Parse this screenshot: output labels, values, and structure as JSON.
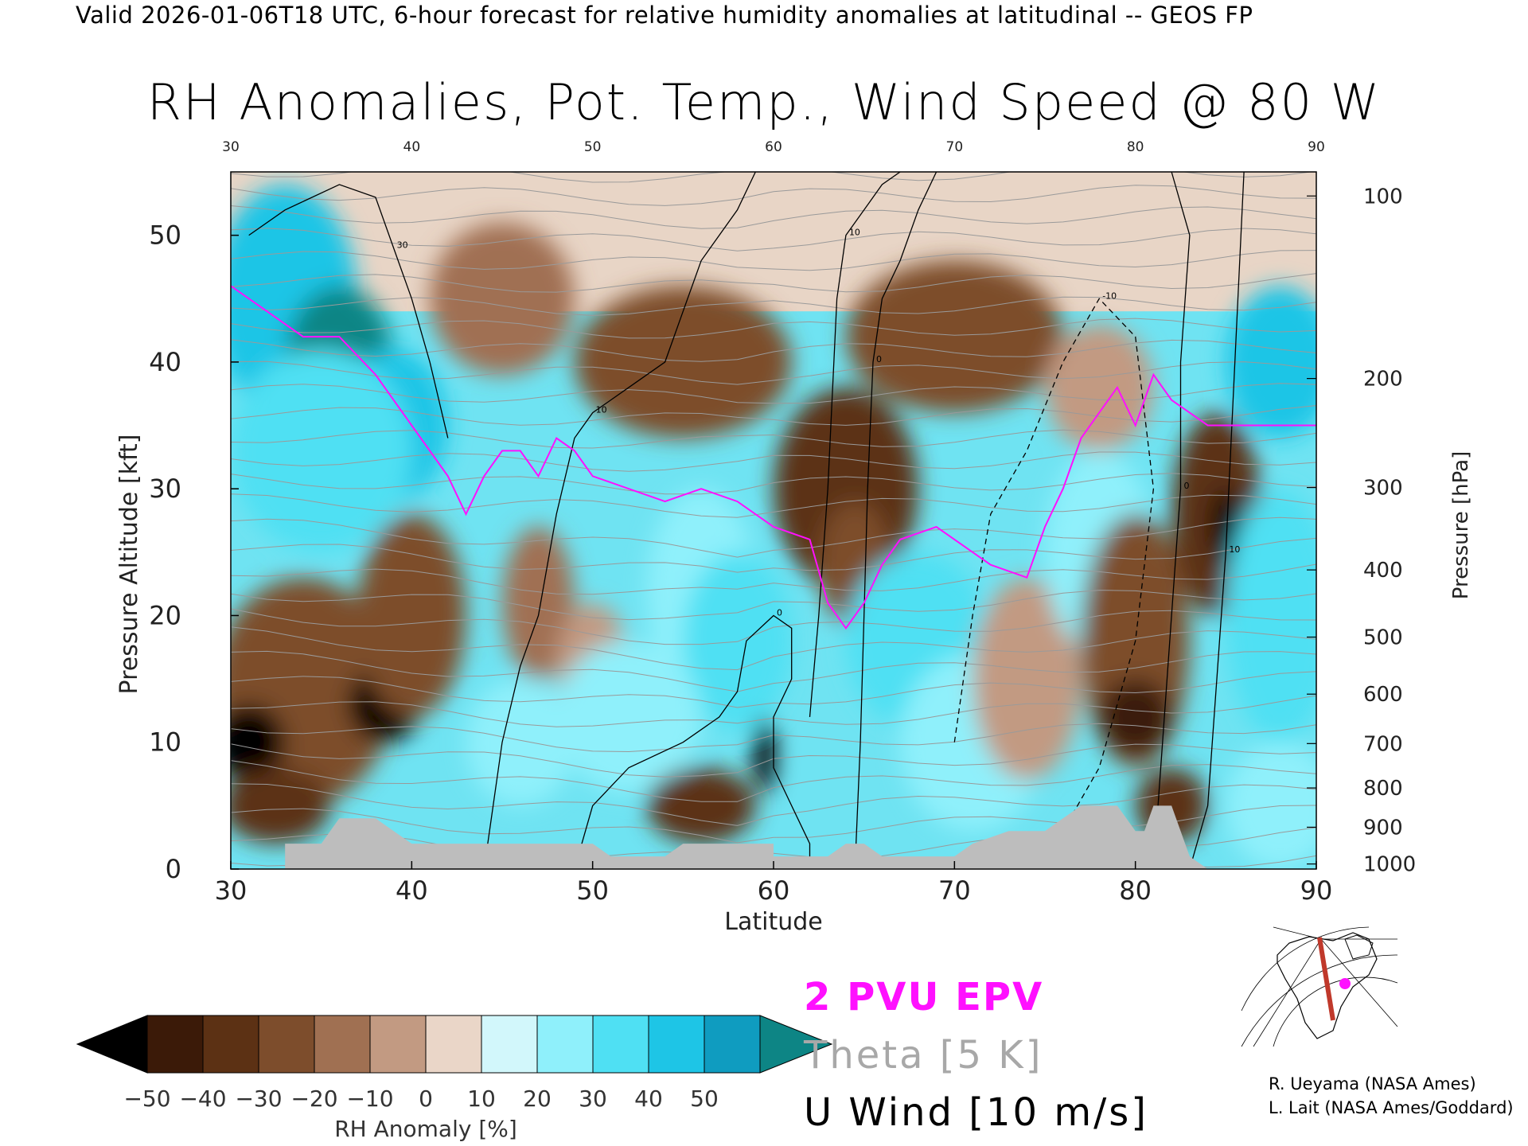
{
  "header": "Valid 2026-01-06T18 UTC, 6-hour forecast for relative humidity anomalies at latitudinal -- GEOS FP",
  "title": "RH Anomalies, Pot. Temp., Wind Speed @ 80 W",
  "legend": {
    "epv_label": "2 PVU EPV",
    "theta_label": "Theta [5 K]",
    "uwind_label": "U Wind [10 m/s]"
  },
  "colorbar": {
    "label": "RH Anomaly [%]",
    "ticks": [
      "−50",
      "−40",
      "−30",
      "−20",
      "−10",
      "0",
      "10",
      "20",
      "30",
      "40",
      "50"
    ],
    "colors": [
      "#000000",
      "#3b1a08",
      "#5c3114",
      "#7d4d2c",
      "#a07052",
      "#c29a82",
      "#ead6c8",
      "#d2f7fb",
      "#8ff0fb",
      "#4fe0f3",
      "#1ec5e6",
      "#0f9cc0",
      "#0d8585"
    ]
  },
  "credits": [
    "R. Ueyama (NASA Ames)",
    "L. Lait (NASA Ames/Goddard)"
  ],
  "chart_data": {
    "type": "heatmap",
    "title": "RH Anomalies, Pot. Temp., Wind Speed @ 80 W",
    "xlabel": "Latitude",
    "ylabel": "Pressure Altitude [kft]",
    "y2label": "Pressure [hPa]",
    "xlim": [
      30,
      90
    ],
    "ylim": [
      0,
      55
    ],
    "x_ticks": [
      30,
      40,
      50,
      60,
      70,
      80,
      90
    ],
    "y_ticks": [
      0,
      10,
      20,
      30,
      40,
      50
    ],
    "pressure_ticks": [
      {
        "hpa": "100",
        "kft": 53.1
      },
      {
        "hpa": "200",
        "kft": 38.7
      },
      {
        "hpa": "300",
        "kft": 30.1
      },
      {
        "hpa": "400",
        "kft": 23.6
      },
      {
        "hpa": "500",
        "kft": 18.3
      },
      {
        "hpa": "600",
        "kft": 13.8
      },
      {
        "hpa": "700",
        "kft": 9.9
      },
      {
        "hpa": "800",
        "kft": 6.4
      },
      {
        "hpa": "900",
        "kft": 3.3
      },
      {
        "hpa": "1000",
        "kft": 0.4
      }
    ],
    "rh_anomaly_blobs": [
      {
        "lat": 33,
        "kft": 45,
        "value": 45,
        "rx": 4,
        "ry": 9
      },
      {
        "lat": 36,
        "kft": 40,
        "value": 50,
        "rx": 3,
        "ry": 6
      },
      {
        "lat": 39,
        "kft": 35,
        "value": 40,
        "rx": 3,
        "ry": 6
      },
      {
        "lat": 35,
        "kft": 33,
        "value": 35,
        "rx": 5,
        "ry": 8
      },
      {
        "lat": 34,
        "kft": 14,
        "value": -30,
        "rx": 5,
        "ry": 9
      },
      {
        "lat": 31,
        "kft": 10,
        "value": -50,
        "rx": 2,
        "ry": 3
      },
      {
        "lat": 38.5,
        "kft": 13,
        "value": -50,
        "rx": 2,
        "ry": 3
      },
      {
        "lat": 40,
        "kft": 20,
        "value": -30,
        "rx": 3,
        "ry": 8
      },
      {
        "lat": 32.5,
        "kft": 5,
        "value": -40,
        "rx": 3,
        "ry": 3
      },
      {
        "lat": 47,
        "kft": 21,
        "value": -20,
        "rx": 2,
        "ry": 6
      },
      {
        "lat": 50,
        "kft": 16,
        "value": -10,
        "rx": 2,
        "ry": 5
      },
      {
        "lat": 56,
        "kft": 22,
        "value": 20,
        "rx": 3,
        "ry": 8
      },
      {
        "lat": 58,
        "kft": 18,
        "value": 35,
        "rx": 3,
        "ry": 7
      },
      {
        "lat": 52,
        "kft": 12,
        "value": 25,
        "rx": 4,
        "ry": 6
      },
      {
        "lat": 46,
        "kft": 10,
        "value": 20,
        "rx": 3,
        "ry": 5
      },
      {
        "lat": 56,
        "kft": 5,
        "value": -35,
        "rx": 3,
        "ry": 3
      },
      {
        "lat": 59.5,
        "kft": 9,
        "value": -50,
        "rx": 0.6,
        "ry": 3
      },
      {
        "lat": 64,
        "kft": 30,
        "value": -40,
        "rx": 4,
        "ry": 8
      },
      {
        "lat": 64.5,
        "kft": 24,
        "value": -30,
        "rx": 2,
        "ry": 5
      },
      {
        "lat": 68,
        "kft": 18,
        "value": 35,
        "rx": 4,
        "ry": 7
      },
      {
        "lat": 71,
        "kft": 10,
        "value": 20,
        "rx": 4,
        "ry": 7
      },
      {
        "lat": 74,
        "kft": 15,
        "value": -10,
        "rx": 3,
        "ry": 8
      },
      {
        "lat": 78,
        "kft": 25,
        "value": 20,
        "rx": 3,
        "ry": 8
      },
      {
        "lat": 80,
        "kft": 18,
        "value": -30,
        "rx": 3,
        "ry": 10
      },
      {
        "lat": 80,
        "kft": 12,
        "value": -45,
        "rx": 2,
        "ry": 3
      },
      {
        "lat": 84.5,
        "kft": 28,
        "value": -40,
        "rx": 2.5,
        "ry": 8
      },
      {
        "lat": 85,
        "kft": 27,
        "value": -50,
        "rx": 0.8,
        "ry": 3
      },
      {
        "lat": 82,
        "kft": 5,
        "value": -35,
        "rx": 2,
        "ry": 3
      },
      {
        "lat": 88,
        "kft": 40,
        "value": 40,
        "rx": 3,
        "ry": 6
      },
      {
        "lat": 88,
        "kft": 20,
        "value": 30,
        "rx": 3,
        "ry": 10
      },
      {
        "lat": 88,
        "kft": 5,
        "value": 25,
        "rx": 3,
        "ry": 5
      },
      {
        "lat": 45,
        "kft": 45,
        "value": -20,
        "rx": 4,
        "ry": 6
      },
      {
        "lat": 55,
        "kft": 40,
        "value": -30,
        "rx": 6,
        "ry": 6
      },
      {
        "lat": 70,
        "kft": 42,
        "value": -30,
        "rx": 6,
        "ry": 6
      },
      {
        "lat": 78,
        "kft": 38,
        "value": -10,
        "rx": 3,
        "ry": 5
      }
    ],
    "epv_2pvu_line": [
      [
        30,
        46
      ],
      [
        32,
        44
      ],
      [
        34,
        42
      ],
      [
        36,
        42
      ],
      [
        38,
        39
      ],
      [
        40,
        35
      ],
      [
        42,
        31
      ],
      [
        43,
        28
      ],
      [
        44,
        31
      ],
      [
        45,
        33
      ],
      [
        46,
        33
      ],
      [
        47,
        31
      ],
      [
        48,
        34
      ],
      [
        49,
        33
      ],
      [
        50,
        31
      ],
      [
        52,
        30
      ],
      [
        54,
        29
      ],
      [
        56,
        30
      ],
      [
        58,
        29
      ],
      [
        60,
        27
      ],
      [
        62,
        26
      ],
      [
        63,
        21
      ],
      [
        64,
        19
      ],
      [
        65,
        21
      ],
      [
        66,
        24
      ],
      [
        67,
        26
      ],
      [
        69,
        27
      ],
      [
        72,
        24
      ],
      [
        74,
        23
      ],
      [
        75,
        27
      ],
      [
        76,
        30
      ],
      [
        77,
        34
      ],
      [
        78,
        36
      ],
      [
        79,
        38
      ],
      [
        80,
        35
      ],
      [
        81,
        39
      ],
      [
        82,
        37
      ],
      [
        83,
        36
      ],
      [
        84,
        35
      ],
      [
        85,
        35
      ],
      [
        86,
        35
      ],
      [
        88,
        35
      ],
      [
        90,
        35
      ]
    ],
    "u_wind_contours": [
      {
        "label": "10",
        "points": [
          [
            62,
            12
          ],
          [
            62.5,
            20
          ],
          [
            63,
            30
          ],
          [
            63.5,
            45
          ],
          [
            64,
            50
          ],
          [
            65,
            52
          ],
          [
            66,
            54
          ],
          [
            67,
            55
          ]
        ]
      },
      {
        "label": "0",
        "points": [
          [
            64.5,
            0
          ],
          [
            64.8,
            10
          ],
          [
            65,
            20
          ],
          [
            65.2,
            30
          ],
          [
            65.5,
            40
          ],
          [
            66,
            45
          ],
          [
            67,
            48
          ],
          [
            68,
            52
          ],
          [
            69,
            55
          ]
        ]
      },
      {
        "label": "30",
        "points": [
          [
            31,
            50
          ],
          [
            33,
            52
          ],
          [
            36,
            54
          ],
          [
            38,
            53
          ],
          [
            39,
            49
          ],
          [
            40,
            45
          ],
          [
            41,
            40
          ],
          [
            42,
            34
          ]
        ]
      },
      {
        "label": "10",
        "points": [
          [
            83,
            0
          ],
          [
            84,
            5
          ],
          [
            84.5,
            15
          ],
          [
            85,
            25
          ],
          [
            85.5,
            40
          ],
          [
            86,
            55
          ]
        ]
      },
      {
        "label": "0",
        "points": [
          [
            81,
            0
          ],
          [
            81.5,
            10
          ],
          [
            82,
            20
          ],
          [
            82.5,
            30
          ],
          [
            82.5,
            40
          ],
          [
            83,
            50
          ],
          [
            82,
            55
          ]
        ]
      },
      {
        "label": "-10",
        "points": [
          [
            70,
            10
          ],
          [
            71,
            20
          ],
          [
            72,
            28
          ],
          [
            74,
            33
          ],
          [
            76,
            40
          ],
          [
            78,
            45
          ],
          [
            80,
            42
          ],
          [
            81,
            30
          ],
          [
            80,
            18
          ],
          [
            78,
            8
          ],
          [
            76,
            3
          ]
        ]
      },
      {
        "label": "10",
        "points": [
          [
            44,
            0
          ],
          [
            45,
            10
          ],
          [
            46,
            16
          ],
          [
            47,
            20
          ],
          [
            48,
            28
          ],
          [
            49,
            34
          ],
          [
            50,
            36
          ],
          [
            52,
            38
          ],
          [
            54,
            40
          ],
          [
            55,
            44
          ],
          [
            56,
            48
          ],
          [
            58,
            52
          ],
          [
            59,
            55
          ]
        ]
      },
      {
        "label": "0",
        "points": [
          [
            49,
            0
          ],
          [
            50,
            5
          ],
          [
            52,
            8
          ],
          [
            55,
            10
          ],
          [
            57,
            12
          ],
          [
            58,
            14
          ],
          [
            58.5,
            18
          ],
          [
            60,
            20
          ],
          [
            61,
            19
          ],
          [
            61,
            15
          ],
          [
            60,
            12
          ],
          [
            60,
            8
          ],
          [
            61,
            5
          ],
          [
            62,
            2
          ],
          [
            62,
            0
          ]
        ]
      }
    ],
    "terrain_gray": [
      [
        33,
        0
      ],
      [
        33,
        2
      ],
      [
        35,
        2
      ],
      [
        36,
        4
      ],
      [
        37,
        4
      ],
      [
        38,
        4
      ],
      [
        39,
        3
      ],
      [
        40,
        2
      ],
      [
        41,
        2
      ],
      [
        42,
        2
      ],
      [
        50,
        2
      ],
      [
        51,
        1
      ],
      [
        54,
        1
      ],
      [
        55,
        2
      ],
      [
        60,
        2
      ],
      [
        60,
        1
      ],
      [
        63,
        1
      ],
      [
        64,
        2
      ],
      [
        65,
        2
      ],
      [
        66,
        1
      ],
      [
        70,
        1
      ],
      [
        71,
        2
      ],
      [
        73,
        3
      ],
      [
        75,
        3
      ],
      [
        76,
        4
      ],
      [
        77,
        5
      ],
      [
        78,
        5
      ],
      [
        79,
        5
      ],
      [
        80,
        3
      ],
      [
        80.5,
        3
      ],
      [
        81,
        5
      ],
      [
        82,
        5
      ],
      [
        82.5,
        3
      ],
      [
        83,
        1
      ],
      [
        84,
        0
      ]
    ]
  }
}
